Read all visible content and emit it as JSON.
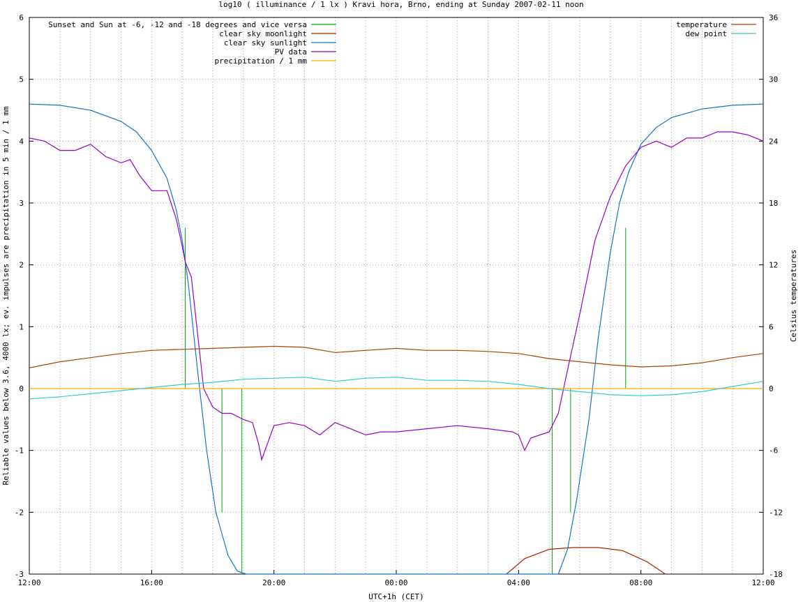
{
  "chart_data": {
    "type": "line",
    "title": "log10 ( illuminance / 1 lx ) Kravi hora, Brno, ending at Sunday 2007-02-11 noon",
    "xlabel": "UTC+1h (CET)",
    "ylabel": "Reliable values below 3.6, 4000 lx; ev. impulses are precipitation in 5 min / 1 mm",
    "y2label": "Celsius temperatures",
    "xlim": [
      0,
      24
    ],
    "ylim": [
      -3,
      6
    ],
    "y2lim": [
      -18,
      36
    ],
    "x_ticks": [
      {
        "value": 0,
        "label": "12:00"
      },
      {
        "value": 4,
        "label": "16:00"
      },
      {
        "value": 8,
        "label": "20:00"
      },
      {
        "value": 12,
        "label": "00:00"
      },
      {
        "value": 16,
        "label": "04:00"
      },
      {
        "value": 20,
        "label": "08:00"
      },
      {
        "value": 24,
        "label": "12:00"
      }
    ],
    "y_ticks": [
      "-3",
      "-2",
      "-1",
      "0",
      "1",
      "2",
      "3",
      "4",
      "5",
      "6"
    ],
    "y2_ticks": [
      "-18",
      "-12",
      "-6",
      "0",
      "6",
      "12",
      "18",
      "24",
      "30",
      "36"
    ],
    "grid": true,
    "legend_left": "top-left",
    "legend_right": "top-right",
    "series": [
      {
        "name": "Sunset and Sun at -6, -12 and -18 degrees and vice versa",
        "color": "#00aa00",
        "type": "impulse",
        "x": [
          5.1,
          6.3,
          6.95,
          17.1,
          17.7,
          19.5
        ],
        "y": [
          2.6,
          0,
          0,
          0,
          0,
          2.6
        ],
        "base": [
          0,
          -2,
          -3,
          -3,
          -2,
          0
        ]
      },
      {
        "name": "clear sky moonlight",
        "color": "#aa2200",
        "axis": "y",
        "x": [
          15.6,
          16.2,
          17.0,
          17.8,
          18.6,
          19.4,
          20.2,
          20.8
        ],
        "y": [
          -3.0,
          -2.75,
          -2.6,
          -2.57,
          -2.57,
          -2.62,
          -2.8,
          -3.0
        ]
      },
      {
        "name": "clear sky sunlight",
        "color": "#1177cc",
        "axis": "y",
        "x": [
          0,
          1,
          2,
          3,
          3.5,
          4,
          4.5,
          4.8,
          5.0,
          5.2,
          5.5,
          5.8,
          6.1,
          6.5,
          6.8,
          7.1,
          17.3,
          17.6,
          17.9,
          18.3,
          18.6,
          19.0,
          19.3,
          19.6,
          20.0,
          20.5,
          21,
          22,
          23,
          24
        ],
        "y": [
          4.6,
          4.58,
          4.5,
          4.32,
          4.15,
          3.85,
          3.4,
          2.9,
          2.4,
          1.7,
          0.3,
          -1.0,
          -2.0,
          -2.7,
          -2.95,
          -3.0,
          -3.0,
          -2.6,
          -1.8,
          -0.5,
          0.8,
          2.2,
          3.0,
          3.5,
          3.95,
          4.22,
          4.38,
          4.52,
          4.58,
          4.6
        ]
      },
      {
        "name": "PV data",
        "color": "#9900cc",
        "axis": "y",
        "x": [
          0,
          0.5,
          1,
          1.5,
          2,
          2.5,
          3,
          3.3,
          3.6,
          4,
          4.5,
          4.8,
          5.0,
          5.1,
          5.3,
          5.5,
          5.7,
          6.0,
          6.3,
          6.6,
          7.0,
          7.3,
          7.5,
          7.6,
          8,
          8.5,
          9,
          9.5,
          10,
          10.5,
          11,
          11.5,
          12,
          13,
          14,
          15,
          15.8,
          16.0,
          16.2,
          16.4,
          16.7,
          17.0,
          17.3,
          17.6,
          18.0,
          18.5,
          19.0,
          19.5,
          20.0,
          20.5,
          21,
          21.5,
          22,
          22.5,
          23,
          23.5,
          24
        ],
        "y": [
          4.05,
          4.0,
          3.85,
          3.85,
          3.95,
          3.75,
          3.65,
          3.7,
          3.45,
          3.2,
          3.2,
          2.75,
          2.3,
          2.05,
          1.8,
          0.9,
          0.0,
          -0.3,
          -0.4,
          -0.4,
          -0.5,
          -0.55,
          -0.9,
          -1.15,
          -0.6,
          -0.55,
          -0.6,
          -0.75,
          -0.55,
          -0.65,
          -0.75,
          -0.7,
          -0.7,
          -0.65,
          -0.6,
          -0.65,
          -0.7,
          -0.75,
          -1.0,
          -0.8,
          -0.75,
          -0.7,
          -0.4,
          0.3,
          1.2,
          2.4,
          3.1,
          3.6,
          3.9,
          4.0,
          3.9,
          4.05,
          4.05,
          4.15,
          4.15,
          4.1,
          4.0
        ]
      },
      {
        "name": "precipitation / 1 mm",
        "color": "#ffaa00",
        "axis": "y",
        "x": [
          0,
          24
        ],
        "y": [
          0,
          0
        ]
      },
      {
        "name": "temperature",
        "color": "#aa4400",
        "axis": "y2",
        "x": [
          0,
          1,
          2,
          3,
          4,
          5,
          6,
          7,
          8,
          9,
          10,
          11,
          12,
          13,
          14,
          15,
          16,
          17,
          18,
          19,
          20,
          21,
          22,
          23,
          24
        ],
        "y": [
          2.0,
          2.6,
          3.0,
          3.4,
          3.7,
          3.8,
          3.9,
          4.0,
          4.1,
          4.0,
          3.5,
          3.7,
          3.9,
          3.7,
          3.7,
          3.6,
          3.4,
          2.9,
          2.6,
          2.3,
          2.1,
          2.2,
          2.5,
          3.0,
          3.4
        ]
      },
      {
        "name": "dew point",
        "color": "#33cccc",
        "axis": "y2",
        "x": [
          0,
          1,
          2,
          3,
          4,
          5,
          6,
          7,
          8,
          9,
          10,
          11,
          12,
          13,
          14,
          15,
          16,
          17,
          18,
          19,
          20,
          21,
          22,
          23,
          24
        ],
        "y": [
          -1.0,
          -0.8,
          -0.5,
          -0.2,
          0.1,
          0.4,
          0.6,
          0.9,
          1.0,
          1.1,
          0.7,
          1.0,
          1.1,
          0.8,
          0.8,
          0.7,
          0.4,
          0.0,
          -0.3,
          -0.6,
          -0.7,
          -0.6,
          -0.3,
          0.2,
          0.7
        ]
      }
    ]
  }
}
